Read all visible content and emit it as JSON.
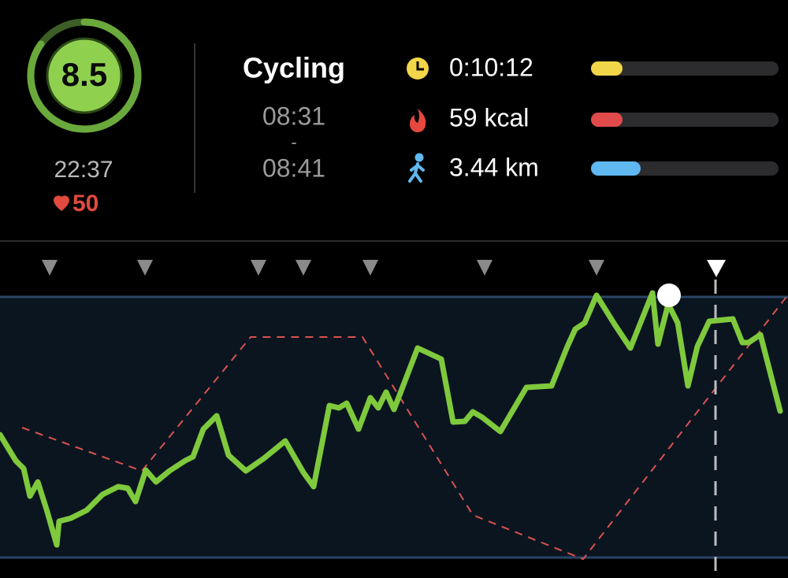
{
  "score": "8.5",
  "time": "22:37",
  "heart_rate": "50",
  "activity": {
    "name": "Cycling",
    "start": "08:31",
    "separator": "-",
    "end": "08:41"
  },
  "stats": [
    {
      "label": "0:10:12"
    },
    {
      "label": "59 kcal"
    },
    {
      "label": "3.44 km"
    }
  ]
}
